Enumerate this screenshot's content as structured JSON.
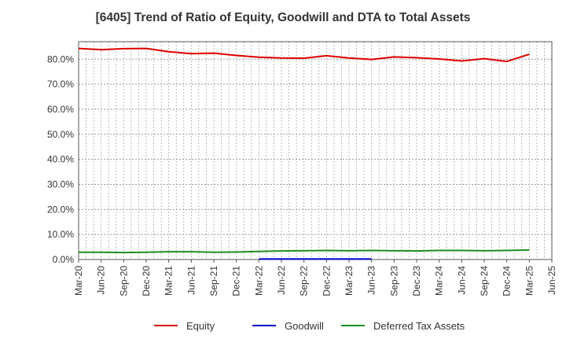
{
  "chart_data": {
    "type": "line",
    "title": "[6405]  Trend of Ratio of Equity, Goodwill and DTA to Total Assets",
    "xlabel": "",
    "ylabel": "",
    "ylim": [
      0,
      0.87
    ],
    "y_ticks": [
      {
        "value": 0.0,
        "label": "0.0%"
      },
      {
        "value": 0.1,
        "label": "10.0%"
      },
      {
        "value": 0.2,
        "label": "20.0%"
      },
      {
        "value": 0.3,
        "label": "30.0%"
      },
      {
        "value": 0.4,
        "label": "40.0%"
      },
      {
        "value": 0.5,
        "label": "50.0%"
      },
      {
        "value": 0.6,
        "label": "60.0%"
      },
      {
        "value": 0.7,
        "label": "70.0%"
      },
      {
        "value": 0.8,
        "label": "80.0%"
      }
    ],
    "x_tick_labels": [
      "Mar-20",
      "Jun-20",
      "Sep-20",
      "Dec-20",
      "Mar-21",
      "Jun-21",
      "Sep-21",
      "Dec-21",
      "Mar-22",
      "Jun-22",
      "Sep-22",
      "Dec-22",
      "Mar-23",
      "Jun-23",
      "Sep-23",
      "Dec-23",
      "Mar-24",
      "Jun-24",
      "Sep-24",
      "Dec-24",
      "Mar-25",
      "Jun-25"
    ],
    "categories": [
      "Mar-20",
      "Jun-20",
      "Sep-20",
      "Dec-20",
      "Mar-21",
      "Jun-21",
      "Sep-21",
      "Dec-21",
      "Mar-22",
      "Jun-22",
      "Sep-22",
      "Dec-22",
      "Mar-23",
      "Jun-23",
      "Sep-23",
      "Dec-23",
      "Mar-24",
      "Jun-24",
      "Sep-24",
      "Dec-24",
      "Mar-25"
    ],
    "grid": true,
    "legend_position": "bottom",
    "series": [
      {
        "name": "Equity",
        "color": "#dd0000",
        "values": [
          0.843,
          0.838,
          0.842,
          0.843,
          0.83,
          0.822,
          0.824,
          0.815,
          0.808,
          0.805,
          0.804,
          0.814,
          0.805,
          0.799,
          0.809,
          0.806,
          0.801,
          0.793,
          0.802,
          0.791,
          0.82
        ]
      },
      {
        "name": "Goodwill",
        "color": "#0000cc",
        "values": [
          null,
          null,
          null,
          null,
          null,
          null,
          null,
          null,
          0.002,
          0.002,
          0.002,
          0.002,
          0.002,
          0.002,
          null,
          null,
          null,
          null,
          null,
          null,
          null
        ]
      },
      {
        "name": "Deferred Tax Assets",
        "color": "#228b22",
        "values": [
          0.029,
          0.029,
          0.028,
          0.029,
          0.031,
          0.031,
          0.029,
          0.03,
          0.032,
          0.034,
          0.035,
          0.036,
          0.035,
          0.036,
          0.035,
          0.034,
          0.036,
          0.036,
          0.035,
          0.036,
          0.038
        ]
      }
    ]
  }
}
